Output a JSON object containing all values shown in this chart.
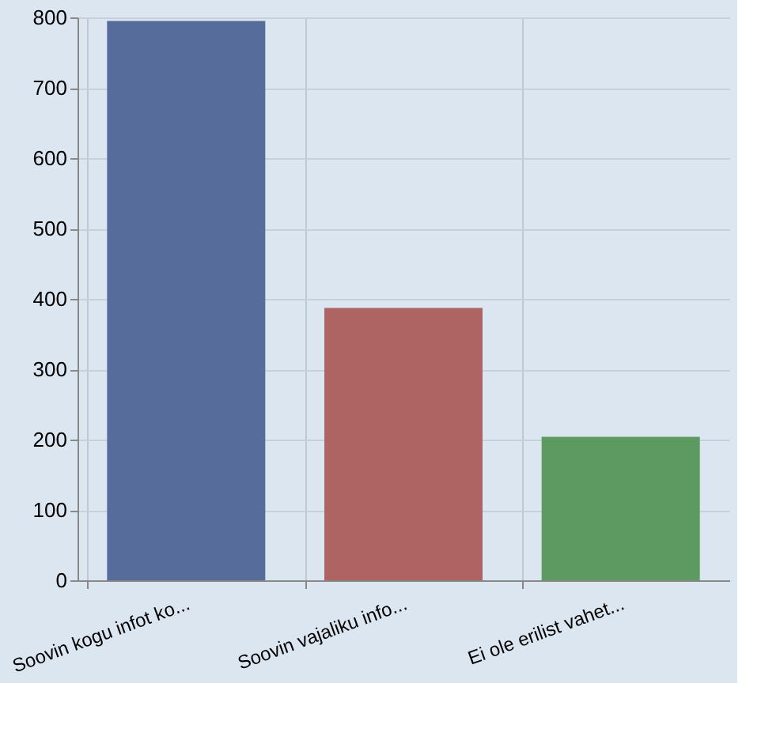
{
  "chart_data": {
    "type": "bar",
    "categories": [
      "Soovin kogu infot ko...",
      "Soovin vajaliku info...",
      "Ei ole erilist vahet..."
    ],
    "values": [
      795,
      387,
      204
    ],
    "colors": [
      "#566d9c",
      "#ad6462",
      "#5d9a61"
    ],
    "ylim": [
      0,
      800
    ],
    "yticks": [
      0,
      100,
      200,
      300,
      400,
      500,
      600,
      700,
      800
    ],
    "grid": true
  }
}
